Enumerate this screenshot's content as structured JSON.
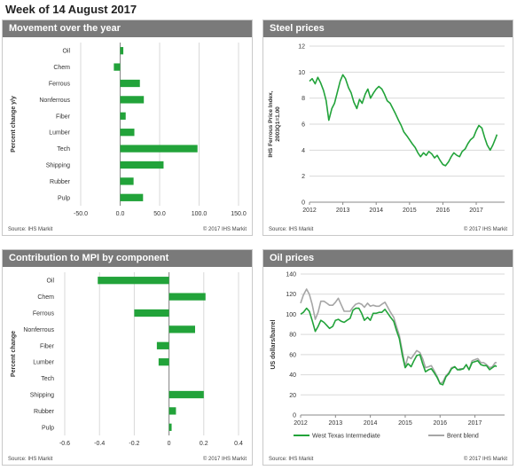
{
  "page_title": "Week of 14 August 2017",
  "colors": {
    "header_bg": "#7a7a7a",
    "bar": "#22a33a",
    "line_green": "#22a33a",
    "line_gray": "#a6a6a6",
    "grid": "#d9d9d9"
  },
  "panels": {
    "movement": {
      "title": "Movement over the year",
      "source": "Source: IHS Markit",
      "copyright": "© 2017 IHS Markit"
    },
    "steel": {
      "title": "Steel prices",
      "source": "Source: IHS Markit",
      "copyright": "© 2017 IHS Markit"
    },
    "contribution": {
      "title": "Contribution  to MPI by component",
      "source": "Source: IHS Markit",
      "copyright": "© 2017 IHS Markit"
    },
    "oil": {
      "title": "Oil  prices",
      "source": "Source: IHS Markit",
      "copyright": "© 2017 IHS Markit"
    }
  },
  "chart_data": [
    {
      "id": "movement",
      "type": "bar",
      "orientation": "horizontal",
      "categories": [
        "Oil",
        "Chem",
        "Ferrous",
        "Nonferrous",
        "Fiber",
        "Lumber",
        "Tech",
        "Shipping",
        "Rubber",
        "Pulp"
      ],
      "values": [
        4,
        -8,
        25,
        30,
        7,
        18,
        98,
        55,
        17,
        29
      ],
      "ylabel": "Percent change y/y",
      "xlim": [
        -50,
        150
      ],
      "xticks": [
        "-50.0",
        "0.0",
        "50.0",
        "100.0",
        "150.0"
      ],
      "xtick_values": [
        -50,
        0,
        50,
        100,
        150
      ],
      "grid": true
    },
    {
      "id": "steel",
      "type": "line",
      "ylabel": "IHS Ferrous Price Index,",
      "ylabel2": "2003Q1=1.00",
      "ylim": [
        0,
        12
      ],
      "yticks": [
        "0",
        "2",
        "4",
        "6",
        "8",
        "10",
        "12"
      ],
      "ytick_values": [
        0,
        2,
        4,
        6,
        8,
        10,
        12
      ],
      "xlim": [
        2012,
        2017.85
      ],
      "xticks": [
        "2012",
        "2013",
        "2014",
        "2015",
        "2016",
        "2017"
      ],
      "xtick_values": [
        2012,
        2013,
        2014,
        2015,
        2016,
        2017
      ],
      "grid": true,
      "series": [
        {
          "x": [
            2012.0,
            2012.08,
            2012.17,
            2012.25,
            2012.33,
            2012.42,
            2012.5,
            2012.58,
            2012.67,
            2012.75,
            2012.83,
            2012.92,
            2013.0,
            2013.08,
            2013.17,
            2013.25,
            2013.33,
            2013.42,
            2013.5,
            2013.58,
            2013.67,
            2013.75,
            2013.83,
            2013.92,
            2014.0,
            2014.08,
            2014.17,
            2014.25,
            2014.33,
            2014.42,
            2014.5,
            2014.58,
            2014.67,
            2014.75,
            2014.83,
            2014.92,
            2015.0,
            2015.08,
            2015.17,
            2015.25,
            2015.33,
            2015.42,
            2015.5,
            2015.58,
            2015.67,
            2015.75,
            2015.83,
            2015.92,
            2016.0,
            2016.08,
            2016.17,
            2016.25,
            2016.33,
            2016.42,
            2016.5,
            2016.58,
            2016.67,
            2016.75,
            2016.83,
            2016.92,
            2017.0,
            2017.08,
            2017.17,
            2017.25,
            2017.33,
            2017.42,
            2017.5,
            2017.58,
            2017.62
          ],
          "y": [
            9.3,
            9.5,
            9.1,
            9.6,
            9.2,
            8.6,
            7.8,
            6.3,
            7.2,
            7.6,
            8.4,
            9.3,
            9.8,
            9.5,
            8.8,
            8.4,
            7.7,
            7.2,
            7.9,
            7.6,
            8.3,
            8.7,
            8.0,
            8.4,
            8.7,
            8.9,
            8.7,
            8.3,
            7.8,
            7.6,
            7.2,
            6.8,
            6.3,
            5.9,
            5.4,
            5.1,
            4.8,
            4.5,
            4.2,
            3.8,
            3.5,
            3.8,
            3.6,
            3.9,
            3.7,
            3.4,
            3.6,
            3.2,
            2.9,
            2.8,
            3.1,
            3.5,
            3.8,
            3.6,
            3.5,
            3.9,
            4.1,
            4.5,
            4.8,
            5.0,
            5.5,
            5.9,
            5.7,
            5.0,
            4.4,
            4.0,
            4.4,
            4.9,
            5.2
          ]
        }
      ]
    },
    {
      "id": "contribution",
      "type": "bar",
      "orientation": "horizontal",
      "categories": [
        "Oil",
        "Chem",
        "Ferrous",
        "Nonferrous",
        "Fiber",
        "Lumber",
        "Tech",
        "Shipping",
        "Rubber",
        "Pulp"
      ],
      "values": [
        -0.41,
        0.21,
        -0.2,
        0.15,
        -0.07,
        -0.06,
        0.0,
        0.2,
        0.04,
        0.015
      ],
      "ylabel": "Percent change",
      "xlim": [
        -0.6,
        0.4
      ],
      "xticks": [
        "-0.6",
        "-0.4",
        "-0.2",
        "0",
        "0.2",
        "0.4"
      ],
      "xtick_values": [
        -0.6,
        -0.4,
        -0.2,
        0,
        0.2,
        0.4
      ],
      "grid": true
    },
    {
      "id": "oil",
      "type": "line",
      "ylabel": "US dollars/barrel",
      "ylim": [
        0,
        140
      ],
      "yticks": [
        "0",
        "20",
        "40",
        "60",
        "80",
        "100",
        "120",
        "140"
      ],
      "ytick_values": [
        0,
        20,
        40,
        60,
        80,
        100,
        120,
        140
      ],
      "xlim": [
        2012,
        2017.85
      ],
      "xticks": [
        "2012",
        "2013",
        "2014",
        "2015",
        "2016",
        "2017"
      ],
      "xtick_values": [
        2012,
        2013,
        2014,
        2015,
        2016,
        2017
      ],
      "grid": true,
      "legend": "bottom",
      "series": [
        {
          "name": "West Texas Intermediate",
          "color": "#22a33a",
          "x": [
            2012.0,
            2012.08,
            2012.17,
            2012.25,
            2012.33,
            2012.42,
            2012.5,
            2012.58,
            2012.67,
            2012.75,
            2012.83,
            2012.92,
            2013.0,
            2013.08,
            2013.17,
            2013.25,
            2013.33,
            2013.42,
            2013.5,
            2013.58,
            2013.67,
            2013.75,
            2013.83,
            2013.92,
            2014.0,
            2014.08,
            2014.17,
            2014.25,
            2014.33,
            2014.42,
            2014.5,
            2014.58,
            2014.67,
            2014.75,
            2014.83,
            2014.92,
            2015.0,
            2015.08,
            2015.17,
            2015.25,
            2015.33,
            2015.42,
            2015.5,
            2015.58,
            2015.67,
            2015.75,
            2015.83,
            2015.92,
            2016.0,
            2016.08,
            2016.17,
            2016.25,
            2016.33,
            2016.42,
            2016.5,
            2016.58,
            2016.67,
            2016.75,
            2016.83,
            2016.92,
            2017.0,
            2017.08,
            2017.17,
            2017.25,
            2017.33,
            2017.42,
            2017.5,
            2017.58,
            2017.62
          ],
          "y": [
            100,
            102,
            106,
            103,
            94,
            83,
            88,
            94,
            92,
            89,
            86,
            88,
            94,
            95,
            93,
            92,
            94,
            96,
            104,
            106,
            106,
            101,
            94,
            97,
            94,
            101,
            101,
            102,
            102,
            105,
            101,
            97,
            93,
            84,
            76,
            59,
            47,
            51,
            48,
            54,
            59,
            60,
            51,
            43,
            45,
            46,
            42,
            37,
            31,
            30,
            38,
            41,
            46,
            48,
            45,
            45,
            46,
            50,
            45,
            52,
            53,
            54,
            50,
            49,
            49,
            45,
            47,
            49,
            48
          ]
        },
        {
          "name": "Brent blend",
          "color": "#a6a6a6",
          "x": [
            2012.0,
            2012.08,
            2012.17,
            2012.25,
            2012.33,
            2012.42,
            2012.5,
            2012.58,
            2012.67,
            2012.75,
            2012.83,
            2012.92,
            2013.0,
            2013.08,
            2013.17,
            2013.25,
            2013.33,
            2013.42,
            2013.5,
            2013.58,
            2013.67,
            2013.75,
            2013.83,
            2013.92,
            2014.0,
            2014.08,
            2014.17,
            2014.25,
            2014.33,
            2014.42,
            2014.5,
            2014.58,
            2014.67,
            2014.75,
            2014.83,
            2014.92,
            2015.0,
            2015.08,
            2015.17,
            2015.25,
            2015.33,
            2015.42,
            2015.5,
            2015.58,
            2015.67,
            2015.75,
            2015.83,
            2015.92,
            2016.0,
            2016.08,
            2016.17,
            2016.25,
            2016.33,
            2016.42,
            2016.5,
            2016.58,
            2016.67,
            2016.75,
            2016.83,
            2016.92,
            2017.0,
            2017.08,
            2017.17,
            2017.25,
            2017.33,
            2017.42,
            2017.5,
            2017.58,
            2017.62
          ],
          "y": [
            111,
            119,
            125,
            120,
            110,
            95,
            102,
            113,
            113,
            111,
            109,
            109,
            112,
            116,
            109,
            103,
            103,
            103,
            107,
            110,
            111,
            110,
            107,
            111,
            108,
            109,
            108,
            108,
            110,
            112,
            107,
            102,
            97,
            88,
            79,
            63,
            48,
            58,
            56,
            60,
            64,
            62,
            56,
            47,
            48,
            49,
            44,
            38,
            31,
            33,
            39,
            42,
            47,
            48,
            45,
            46,
            46,
            50,
            45,
            54,
            55,
            56,
            52,
            52,
            50,
            47,
            48,
            52,
            52
          ]
        }
      ]
    }
  ]
}
